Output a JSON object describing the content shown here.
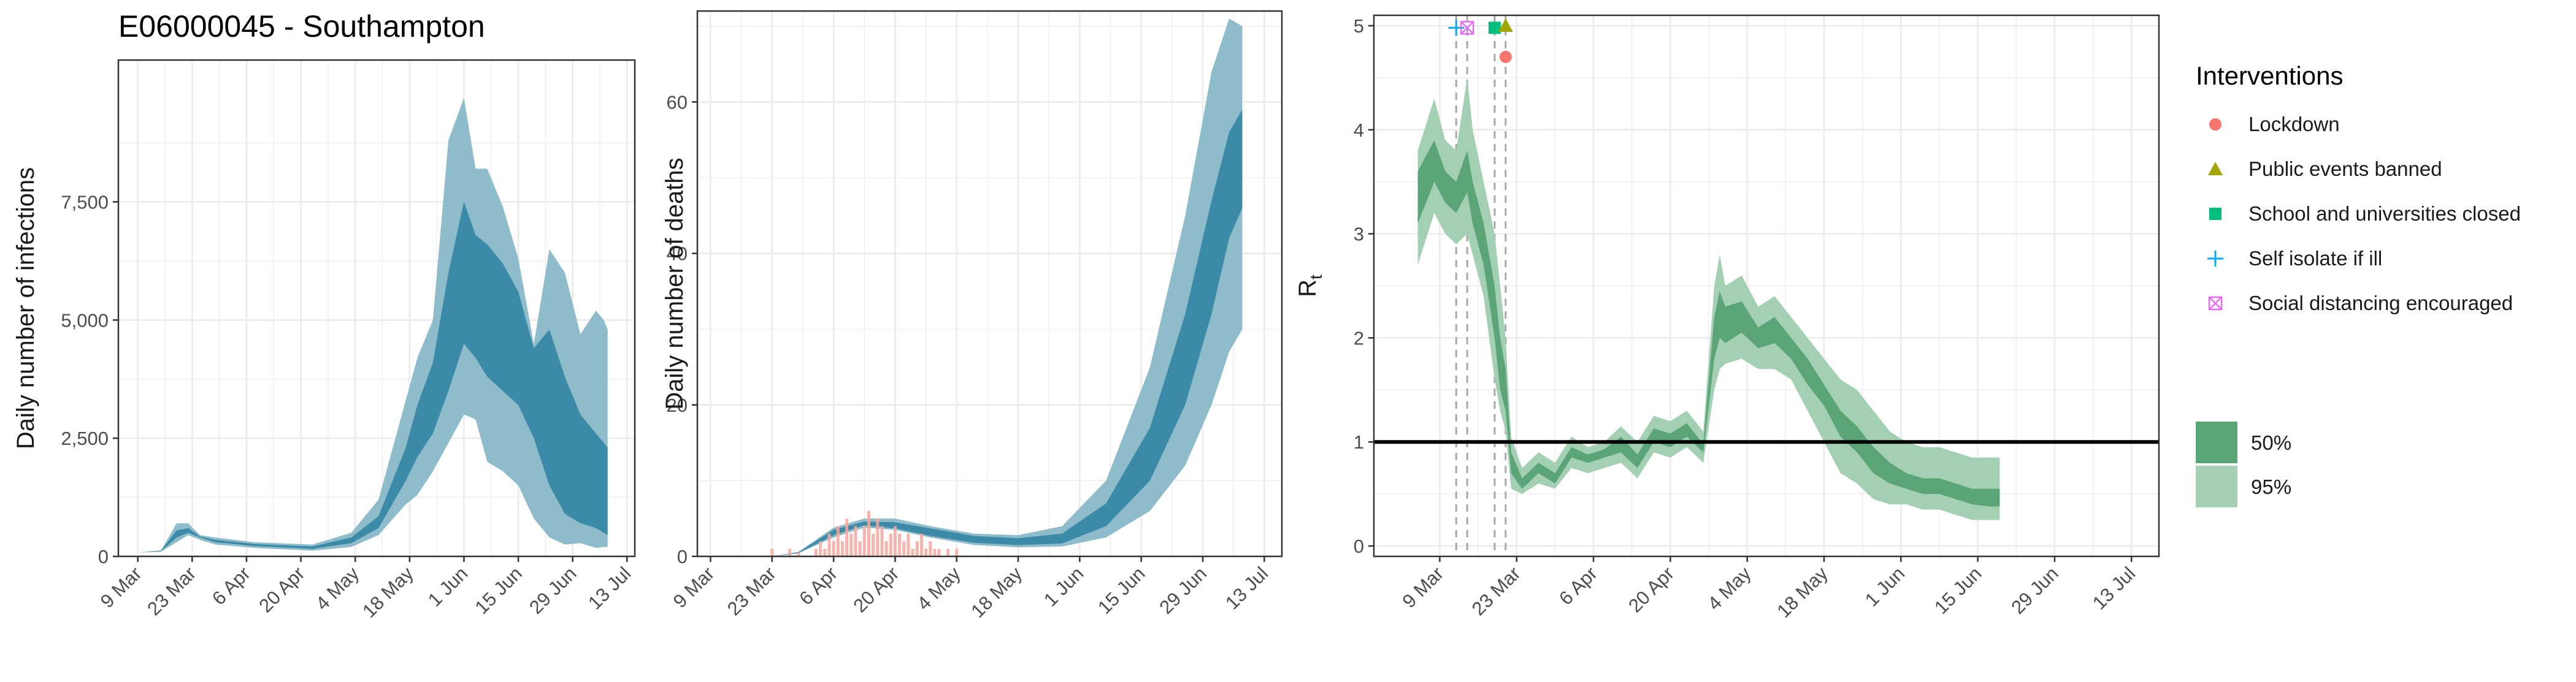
{
  "colors": {
    "panel_grid": "#ebebeb",
    "infections_band95": "#8fbccb",
    "infections_band50": "#3a8aa8",
    "deaths_bar": "#f4a9a1",
    "rt_band95": "#a3d0b2",
    "rt_band50": "#5aa478",
    "lockdown": "#f8766d",
    "public_events": "#a3a500",
    "school": "#00bf7d",
    "self_isolate": "#00b0f6",
    "social_distancing": "#e76bf3"
  },
  "chart_data": [
    {
      "type": "area",
      "title": "E06000045 - Southampton",
      "xlabel": "",
      "ylabel": "Daily number of infections",
      "ylim": [
        0,
        10500
      ],
      "x_ticks": [
        "9 Mar",
        "23 Mar",
        "6 Apr",
        "20 Apr",
        "4 May",
        "18 May",
        "1 Jun",
        "15 Jun",
        "29 Jun",
        "13 Jul"
      ],
      "y_ticks": [
        "0",
        "2,500",
        "5,000",
        "7,500"
      ],
      "y_tick_values": [
        0,
        2500,
        5000,
        7500
      ],
      "x_days": [
        0,
        6,
        10,
        13,
        16,
        20,
        30,
        45,
        55,
        62,
        69,
        72,
        76,
        80,
        84,
        87,
        90,
        94,
        98,
        102,
        106,
        110,
        114,
        118,
        120,
        121
      ],
      "series": [
        {
          "band": "95%",
          "lower": [
            80,
            100,
            300,
            450,
            350,
            250,
            180,
            120,
            200,
            450,
            1100,
            1300,
            1800,
            2400,
            3000,
            2900,
            2000,
            1800,
            1500,
            800,
            400,
            250,
            280,
            180,
            200,
            200
          ],
          "upper": [
            80,
            130,
            700,
            700,
            450,
            400,
            300,
            250,
            500,
            1200,
            3300,
            4200,
            5000,
            8800,
            9700,
            8200,
            8200,
            7400,
            6300,
            4500,
            6500,
            6000,
            4700,
            5200,
            5000,
            4800
          ]
        },
        {
          "band": "50%",
          "lower": [
            80,
            110,
            400,
            500,
            400,
            300,
            220,
            160,
            280,
            600,
            1600,
            2100,
            2600,
            3500,
            4500,
            4200,
            3800,
            3500,
            3200,
            2500,
            1500,
            900,
            700,
            600,
            500,
            450
          ],
          "upper": [
            80,
            120,
            550,
            600,
            420,
            350,
            260,
            210,
            400,
            850,
            2300,
            3200,
            4100,
            6000,
            7500,
            6800,
            6600,
            6200,
            5600,
            4400,
            4800,
            3800,
            3000,
            2600,
            2400,
            2300
          ]
        }
      ]
    },
    {
      "type": "area",
      "title": "",
      "xlabel": "",
      "ylabel": "Daily number of deaths",
      "ylim": [
        0,
        72
      ],
      "x_ticks": [
        "9 Mar",
        "23 Mar",
        "6 Apr",
        "20 Apr",
        "4 May",
        "18 May",
        "1 Jun",
        "15 Jun",
        "29 Jun",
        "13 Jul"
      ],
      "y_ticks": [
        "0",
        "20",
        "40",
        "60"
      ],
      "y_tick_values": [
        0,
        20,
        40,
        60
      ],
      "x_days": [
        14,
        20,
        28,
        35,
        42,
        50,
        60,
        70,
        80,
        90,
        100,
        108,
        114,
        118,
        121
      ],
      "series": [
        {
          "band": "95%",
          "lower": [
            0,
            0.4,
            2.5,
            3.8,
            3.5,
            2.5,
            1.5,
            1.2,
            1.3,
            2.5,
            6,
            12,
            20,
            27,
            30
          ],
          "upper": [
            0,
            0.6,
            3.8,
            5,
            5,
            4,
            3,
            2.8,
            4,
            10,
            25,
            45,
            64,
            71,
            70
          ]
        },
        {
          "band": "50%",
          "lower": [
            0,
            0.45,
            2.8,
            4.1,
            3.7,
            2.7,
            1.8,
            1.5,
            1.7,
            4,
            10,
            20,
            32,
            42,
            46
          ],
          "upper": [
            0,
            0.55,
            3.5,
            4.6,
            4.5,
            3.7,
            2.7,
            2.4,
            3,
            7,
            17,
            32,
            47,
            56,
            59
          ]
        }
      ],
      "observed_deaths": [
        {
          "day": 14,
          "value": 1
        },
        {
          "day": 18,
          "value": 1
        },
        {
          "day": 20,
          "value": 0.5
        },
        {
          "day": 24,
          "value": 1
        },
        {
          "day": 25,
          "value": 2
        },
        {
          "day": 26,
          "value": 1
        },
        {
          "day": 27,
          "value": 3
        },
        {
          "day": 28,
          "value": 2
        },
        {
          "day": 29,
          "value": 4
        },
        {
          "day": 30,
          "value": 2
        },
        {
          "day": 31,
          "value": 5
        },
        {
          "day": 32,
          "value": 3
        },
        {
          "day": 33,
          "value": 4
        },
        {
          "day": 34,
          "value": 2
        },
        {
          "day": 35,
          "value": 4
        },
        {
          "day": 36,
          "value": 6
        },
        {
          "day": 37,
          "value": 3
        },
        {
          "day": 38,
          "value": 5
        },
        {
          "day": 39,
          "value": 4
        },
        {
          "day": 40,
          "value": 2
        },
        {
          "day": 41,
          "value": 3
        },
        {
          "day": 42,
          "value": 4
        },
        {
          "day": 43,
          "value": 3
        },
        {
          "day": 44,
          "value": 2
        },
        {
          "day": 45,
          "value": 3
        },
        {
          "day": 46,
          "value": 1
        },
        {
          "day": 47,
          "value": 2
        },
        {
          "day": 48,
          "value": 3
        },
        {
          "day": 49,
          "value": 1
        },
        {
          "day": 50,
          "value": 2
        },
        {
          "day": 51,
          "value": 1
        },
        {
          "day": 52,
          "value": 1
        },
        {
          "day": 54,
          "value": 1
        },
        {
          "day": 56,
          "value": 1
        }
      ]
    },
    {
      "type": "area",
      "title": "",
      "xlabel": "",
      "ylabel": "Rt",
      "ylim": [
        -0.1,
        5.1
      ],
      "reference_line": 1,
      "x_ticks": [
        "9 Mar",
        "23 Mar",
        "6 Apr",
        "20 Apr",
        "4 May",
        "18 May",
        "1 Jun",
        "15 Jun",
        "29 Jun",
        "13 Jul"
      ],
      "y_ticks": [
        "0",
        "1",
        "2",
        "3",
        "4",
        "5"
      ],
      "y_tick_values": [
        0,
        1,
        2,
        3,
        4,
        5
      ],
      "intervention_days": [
        3,
        5,
        10,
        12
      ],
      "x_days": [
        -4,
        -1,
        1,
        3,
        5,
        6,
        8,
        10,
        11,
        12,
        13,
        15,
        18,
        21,
        24,
        27,
        30,
        33,
        36,
        39,
        42,
        45,
        48,
        50,
        51,
        52,
        55,
        58,
        61,
        64,
        67,
        70,
        73,
        76,
        79,
        82,
        85,
        88,
        91,
        94,
        97,
        100,
        102
      ],
      "series": [
        {
          "band": "95%",
          "lower": [
            2.7,
            3.2,
            3.0,
            2.9,
            3.0,
            2.8,
            2.4,
            1.6,
            1.3,
            1.1,
            0.55,
            0.5,
            0.6,
            0.55,
            0.75,
            0.7,
            0.75,
            0.8,
            0.65,
            0.9,
            0.85,
            0.95,
            0.8,
            1.5,
            1.7,
            1.75,
            1.8,
            1.7,
            1.7,
            1.6,
            1.3,
            1.0,
            0.7,
            0.6,
            0.45,
            0.4,
            0.4,
            0.35,
            0.35,
            0.3,
            0.25,
            0.25,
            0.25
          ],
          "upper": [
            3.8,
            4.3,
            3.9,
            3.8,
            4.5,
            4.0,
            3.5,
            3.0,
            2.5,
            2.0,
            1.05,
            0.75,
            0.9,
            0.8,
            1.05,
            0.95,
            1.0,
            1.15,
            1.0,
            1.25,
            1.2,
            1.3,
            1.1,
            2.5,
            2.8,
            2.5,
            2.6,
            2.3,
            2.4,
            2.2,
            2.0,
            1.8,
            1.6,
            1.5,
            1.3,
            1.1,
            1.0,
            0.95,
            0.95,
            0.9,
            0.85,
            0.85,
            0.85
          ]
        },
        {
          "band": "50%",
          "lower": [
            3.1,
            3.5,
            3.3,
            3.2,
            3.4,
            3.1,
            2.7,
            2.0,
            1.5,
            1.3,
            0.7,
            0.55,
            0.7,
            0.6,
            0.85,
            0.8,
            0.85,
            0.9,
            0.75,
            1.0,
            0.95,
            1.05,
            0.9,
            1.8,
            2.0,
            1.95,
            2.05,
            1.9,
            1.95,
            1.8,
            1.55,
            1.35,
            1.05,
            0.9,
            0.7,
            0.6,
            0.55,
            0.5,
            0.5,
            0.45,
            0.4,
            0.38,
            0.38
          ],
          "upper": [
            3.6,
            3.9,
            3.6,
            3.5,
            3.8,
            3.5,
            3.1,
            2.5,
            2.0,
            1.7,
            0.9,
            0.65,
            0.8,
            0.7,
            0.95,
            0.88,
            0.93,
            1.05,
            0.88,
            1.13,
            1.08,
            1.18,
            0.98,
            2.2,
            2.45,
            2.3,
            2.35,
            2.1,
            2.2,
            2.0,
            1.8,
            1.55,
            1.3,
            1.15,
            0.95,
            0.8,
            0.7,
            0.65,
            0.65,
            0.6,
            0.55,
            0.55,
            0.55
          ]
        }
      ],
      "intervention_markers": [
        {
          "label": "Self isolate if ill",
          "day": 3,
          "value": 4.98
        },
        {
          "label": "Social distancing encouraged",
          "day": 5,
          "value": 4.98
        },
        {
          "label": "School and universities closed",
          "day": 10,
          "value": 4.98
        },
        {
          "label": "Public events banned",
          "day": 12,
          "value": 5.0
        },
        {
          "label": "Lockdown",
          "day": 12,
          "value": 4.7
        }
      ]
    }
  ],
  "legend_interventions": {
    "title": "Interventions",
    "items": [
      {
        "label": "Lockdown",
        "symbol": "circle",
        "color": "#f8766d"
      },
      {
        "label": "Public events banned",
        "symbol": "triangle",
        "color": "#a3a500"
      },
      {
        "label": "School and universities closed",
        "symbol": "square",
        "color": "#00bf7d"
      },
      {
        "label": "Self isolate if ill",
        "symbol": "plus",
        "color": "#00b0f6"
      },
      {
        "label": "Social distancing encouraged",
        "symbol": "square-cross",
        "color": "#e76bf3"
      }
    ]
  },
  "legend_bands": {
    "items": [
      {
        "label": "50%",
        "color": "#5aa478"
      },
      {
        "label": "95%",
        "color": "#a3d0b2"
      }
    ]
  }
}
